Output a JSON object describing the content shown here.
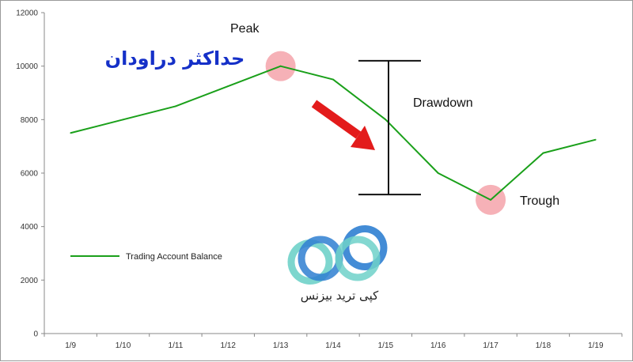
{
  "chart_data": {
    "type": "line",
    "categories": [
      "1/9",
      "1/10",
      "1/11",
      "1/12",
      "1/13",
      "1/14",
      "1/15",
      "1/16",
      "1/17",
      "1/18",
      "1/19"
    ],
    "series": [
      {
        "name": "Trading Account Balance",
        "values": [
          7500,
          8000,
          8500,
          9250,
          10000,
          9500,
          8000,
          6000,
          5000,
          6750,
          7250
        ]
      }
    ],
    "yticks": [
      0,
      2000,
      4000,
      6000,
      8000,
      10000,
      12000
    ],
    "ylim": [
      0,
      12000
    ],
    "line_color": "#1aa01a",
    "highlight_color": "#f4a3aa",
    "arrow_color": "#e31b1b",
    "legend_position": "bottom-left",
    "annotations": {
      "peak": "Peak",
      "trough": "Trough",
      "drawdown": "Drawdown",
      "max_drawdown_fa": "حداکثر دراودان"
    },
    "drawdown_range": {
      "from": 10200,
      "to": 5200
    }
  },
  "watermark": {
    "text": "کپی ترید بیزنس",
    "colors": [
      "#2f7fd1",
      "#6fd1c9"
    ]
  }
}
